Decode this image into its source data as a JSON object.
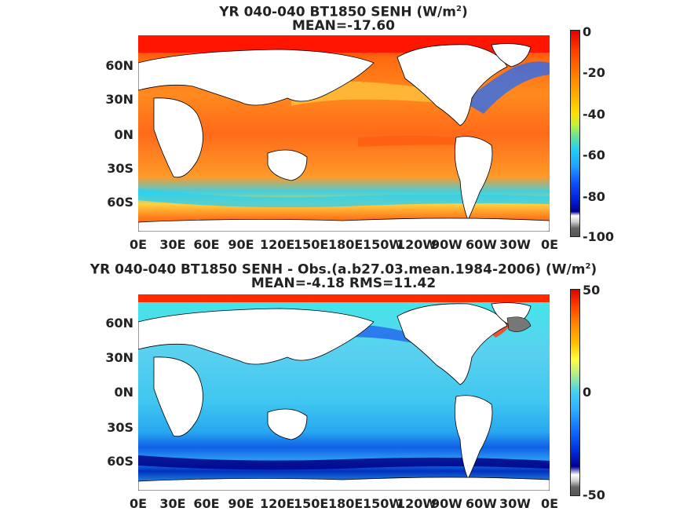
{
  "panel1": {
    "title_line1": "YR 040-040 BT1850  SENH (W/m",
    "title_sup": "2",
    "title_close": ")",
    "title_line2": "MEAN=-17.60",
    "lat_labels": [
      "60N",
      "30N",
      "0N",
      "30S",
      "60S"
    ],
    "lon_labels": [
      "0E",
      "30E",
      "60E",
      "90E",
      "120E",
      "150E",
      "180E",
      "150W",
      "120W",
      "90W",
      "60W",
      "30W",
      "0E"
    ],
    "colorbar_ticks": [
      "0",
      "-20",
      "-40",
      "-60",
      "-80",
      "-100"
    ],
    "colorbar_range": [
      -100,
      0
    ]
  },
  "panel2": {
    "title_line1": "YR 040-040 BT1850 SENH - Obs.(a.b27.03.mean.1984-2006) (W/m",
    "title_sup": "2",
    "title_close": ")",
    "title_line2": "MEAN=-4.18 RMS=11.42",
    "lat_labels": [
      "60N",
      "30N",
      "0N",
      "30S",
      "60S"
    ],
    "lon_labels": [
      "0E",
      "30E",
      "60E",
      "90E",
      "120E",
      "150E",
      "180E",
      "150W",
      "120W",
      "90W",
      "60W",
      "30W",
      "0E"
    ],
    "colorbar_ticks": [
      "50",
      "0",
      "-50"
    ],
    "colorbar_range": [
      -50,
      50
    ]
  }
}
